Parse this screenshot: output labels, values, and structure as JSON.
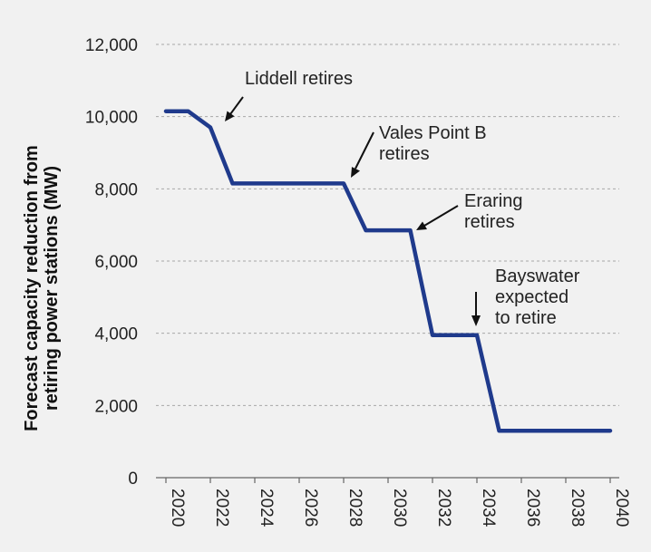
{
  "chart_data": {
    "type": "line",
    "ylabel": [
      "Forecast capacity reduction from",
      "retiring power stations (MW)"
    ],
    "xlabel": "",
    "title": "",
    "xlim": [
      2020,
      2040
    ],
    "ylim": [
      0,
      12000
    ],
    "grid": true,
    "x_ticks": [
      "2020",
      "2022",
      "2024",
      "2026",
      "2028",
      "2030",
      "2032",
      "2034",
      "2036",
      "2038",
      "2040"
    ],
    "y_ticks": [
      "0",
      "2,000",
      "4,000",
      "6,000",
      "8,000",
      "10,000",
      "12,000"
    ],
    "y_tick_values": [
      0,
      2000,
      4000,
      6000,
      8000,
      10000,
      12000
    ],
    "series": [
      {
        "color": "#1f3a8c",
        "x": [
          2020,
          2021,
          2022,
          2023,
          2024,
          2025,
          2026,
          2027,
          2028,
          2029,
          2030,
          2031,
          2032,
          2033,
          2034,
          2035,
          2036,
          2037,
          2038,
          2039,
          2040
        ],
        "y": [
          10150,
          10150,
          9700,
          8150,
          8150,
          8150,
          8150,
          8150,
          8150,
          6850,
          6850,
          6850,
          3950,
          3950,
          3950,
          1300,
          1300,
          1300,
          1300,
          1300,
          1300
        ]
      }
    ],
    "annotations": [
      {
        "lines": [
          "Liddell retires"
        ],
        "point": [
          2022.2,
          9700
        ]
      },
      {
        "lines": [
          "Vales Point B",
          "retires"
        ],
        "point": [
          2028.2,
          8150
        ]
      },
      {
        "lines": [
          "Eraring",
          "retires"
        ],
        "point": [
          2031.2,
          6850
        ]
      },
      {
        "lines": [
          "Bayswater",
          "expected",
          "to retire"
        ],
        "point": [
          2034.1,
          3950
        ]
      }
    ]
  }
}
